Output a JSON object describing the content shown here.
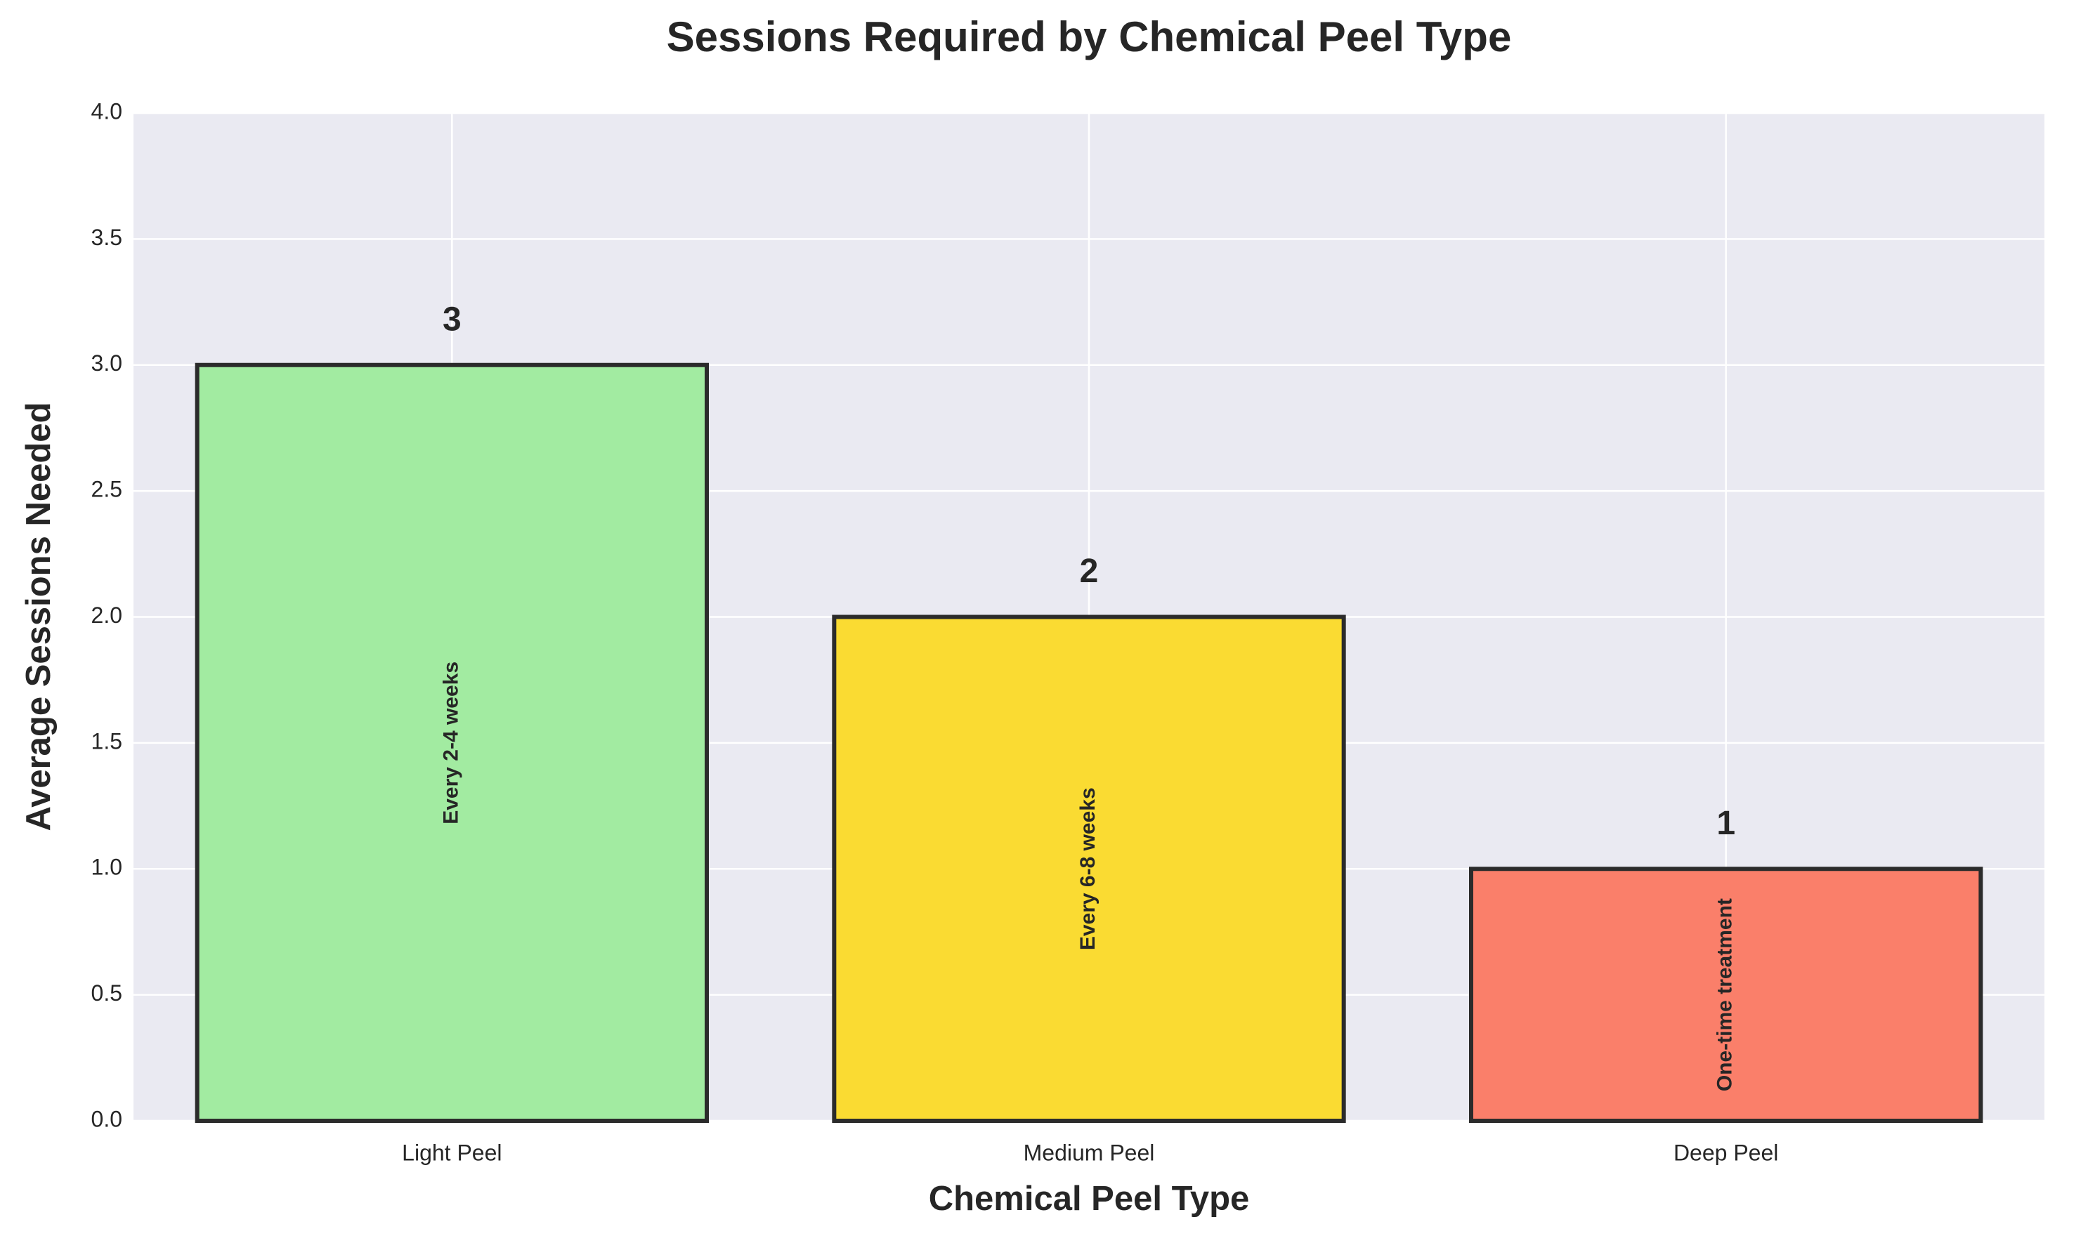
{
  "chart_data": {
    "type": "bar",
    "title": "Sessions Required by Chemical Peel Type",
    "x_label": "Chemical Peel Type",
    "y_label": "Average Sessions Needed",
    "categories": [
      "Light Peel",
      "Medium Peel",
      "Deep Peel"
    ],
    "values": [
      3,
      2,
      1
    ],
    "colors": [
      "#a2eba1",
      "#fadb32",
      "#fa7f6a"
    ],
    "annotations": [
      "Every 2-4 weeks",
      "Every 6-8 weeks",
      "One-time treatment"
    ],
    "ylim": [
      0,
      4
    ],
    "yticks": [
      {
        "value": 0,
        "label": "0.0"
      },
      0.5,
      {
        "value": 1,
        "label": "1.0"
      },
      1.5,
      {
        "value": 2,
        "label": "2.0"
      },
      2.5,
      {
        "value": 3,
        "label": "3.0"
      },
      3.5,
      {
        "value": 4,
        "label": "4.0"
      }
    ],
    "grid": true
  }
}
